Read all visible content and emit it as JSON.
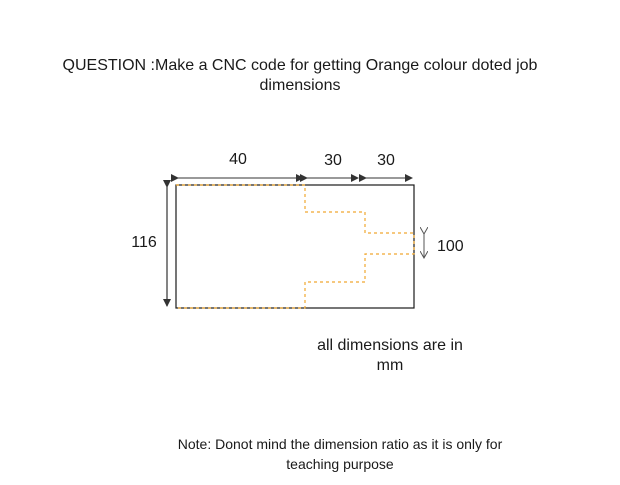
{
  "question": {
    "line1": "QUESTION :Make a CNC code for getting Orange colour doted job",
    "line2": "dimensions"
  },
  "dimensions": {
    "top_left": "40",
    "top_middle": "30",
    "top_right": "30",
    "left_height": "116",
    "right_slot": "100"
  },
  "units_note": {
    "line1": "all dimensions are in",
    "line2": "mm"
  },
  "teaching_note": {
    "line1": "Note: Donot mind the dimension ratio as it is only for",
    "line2": "teaching purpose"
  },
  "colors": {
    "outline": "#1a1a1a",
    "job_profile": "#f0a830",
    "arrow": "#333333"
  }
}
